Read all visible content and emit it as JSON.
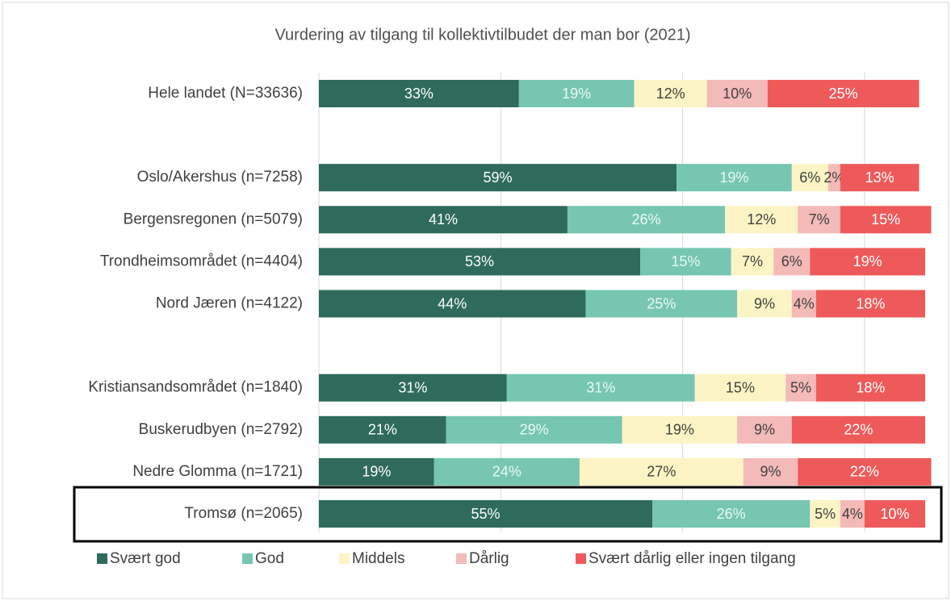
{
  "chart_data": {
    "type": "stacked-bar-horizontal",
    "title": "Vurdering av tilgang til kollektivtilbudet der man bor (2021)",
    "categories": [
      "Hele landet (N=33636)",
      null,
      "Oslo/Akershus (n=7258)",
      "Bergensregonen (n=5079)",
      "Trondheimsområdet (n=4404)",
      "Nord Jæren (n=4122)",
      null,
      "Kristiansandsområdet (n=1840)",
      "Buskerudbyen (n=2792)",
      "Nedre Glomma (n=1721)",
      "Tromsø (n=2065)"
    ],
    "series": [
      {
        "name": "Svært god",
        "color": "#2e6b5c",
        "values": [
          33,
          null,
          59,
          41,
          53,
          44,
          null,
          31,
          21,
          19,
          55
        ],
        "value_labels": [
          "33%",
          null,
          "59%",
          "41%",
          "53%",
          "44%",
          null,
          "31%",
          "21%",
          "19%",
          "55%"
        ]
      },
      {
        "name": "God",
        "color": "#76c6b1",
        "values": [
          19,
          null,
          19,
          26,
          15,
          25,
          null,
          31,
          29,
          24,
          26
        ],
        "value_labels": [
          "19%",
          null,
          "19%",
          "26%",
          "15%",
          "25%",
          null,
          "31%",
          "29%",
          "24%",
          "26%"
        ]
      },
      {
        "name": "Middels",
        "color": "#fcf4c4",
        "values": [
          12,
          null,
          6,
          12,
          7,
          9,
          null,
          15,
          19,
          27,
          5
        ],
        "value_labels": [
          "12%",
          null,
          "6%",
          "12%",
          "7%",
          "9%",
          null,
          "15%",
          "19%",
          "27%",
          "5%"
        ]
      },
      {
        "name": "Dårlig",
        "color": "#f3bab7",
        "values": [
          10,
          null,
          2,
          7,
          6,
          4,
          null,
          5,
          9,
          9,
          4
        ],
        "value_labels": [
          "10%",
          null,
          "2%",
          "7%",
          "6%",
          "4%",
          null,
          "5%",
          "9%",
          "9%",
          "4%"
        ]
      },
      {
        "name": "Svært dårlig eller ingen tilgang",
        "color": "#ee5a5a",
        "values": [
          25,
          null,
          13,
          15,
          19,
          18,
          null,
          18,
          22,
          22,
          10
        ],
        "value_labels": [
          "25%",
          null,
          "13%",
          "15%",
          "19%",
          "18%",
          null,
          "18%",
          "22%",
          "22%",
          "10%"
        ]
      }
    ],
    "xlim": [
      0,
      100
    ],
    "xticks": [
      0,
      30,
      60,
      90
    ],
    "grid": true,
    "legend": "bottom"
  }
}
